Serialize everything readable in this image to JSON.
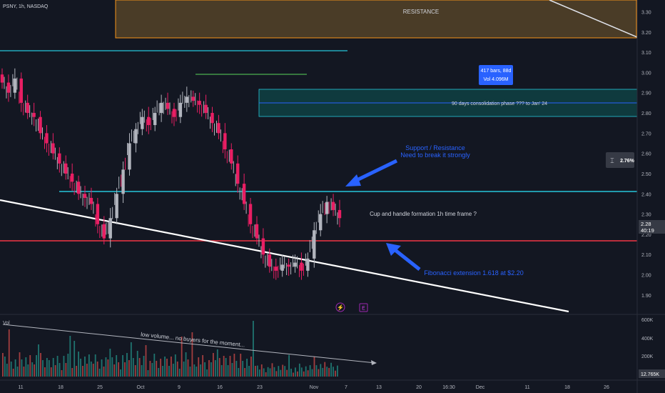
{
  "header": {
    "symbol": "PSNY, 1h, NASDAQ"
  },
  "chart_data": {
    "type": "candlestick",
    "ylim": [
      1.85,
      3.33
    ],
    "y_ticks": [
      "3.30",
      "3.20",
      "3.10",
      "3.00",
      "2.90",
      "2.80",
      "2.70",
      "2.60",
      "2.50",
      "2.40",
      "2.30",
      "2.20",
      "2.10",
      "2.00",
      "1.90"
    ],
    "x_ticks": [
      "11",
      "18",
      "25",
      "Oct",
      "9",
      "16",
      "23",
      "Nov",
      "7",
      "13",
      "20",
      "16:30",
      "Dec",
      "11",
      "18",
      "26"
    ],
    "price_badge": {
      "price": "2.28",
      "countdown": "40:19"
    },
    "volume_pane": {
      "label": "Vol",
      "y_ticks": [
        "600K",
        "400K",
        "200K"
      ],
      "last_value": "12.765K"
    },
    "annotations": {
      "resistance_label": "RESISTANCE",
      "consolidation_label": "90 days consolidation phase ??? to Jan' 24",
      "measure_bars": "417 bars, 88d",
      "measure_vol": "Vol 4.096M",
      "support_line1": "Support / Resistance",
      "support_line2": "Need to break it strongly",
      "cup_handle": "Cup and handle formation 1h time frame ?",
      "fibonacci": "Fibonacci extension 1.618 at $2.20",
      "low_volume": "low volume... no buyers for the moment...",
      "percent_badge": "2.76%",
      "event_dividend": "⚡",
      "event_earnings": "E"
    },
    "series": [
      {
        "type": "candles",
        "x_index_start": 0,
        "close": [
          2.95,
          2.9,
          2.97,
          2.85,
          2.8,
          2.78,
          2.7,
          2.65,
          2.6,
          2.55,
          2.5,
          2.46,
          2.4,
          2.38,
          2.35,
          2.25,
          2.18,
          2.28,
          2.4,
          2.52,
          2.65,
          2.72,
          2.78,
          2.74,
          2.8,
          2.85,
          2.82,
          2.78,
          2.85,
          2.88,
          2.86,
          2.84,
          2.8,
          2.75,
          2.7,
          2.62,
          2.55,
          2.45,
          2.35,
          2.25,
          2.18,
          2.1,
          2.04,
          2.02,
          2.05,
          2.04,
          2.06,
          2.02,
          2.08,
          2.22,
          2.3,
          2.36,
          2.32,
          2.28
        ]
      }
    ]
  },
  "colors": {
    "background": "#131722",
    "up": "#b2b5be",
    "down": "#e91e63",
    "resistance_fill": "#5d4a2a",
    "resistance_border": "#f7931a",
    "cyan": "#26c6da",
    "red_line": "#f23645",
    "blue": "#2962ff",
    "green_line": "#4caf50",
    "volume_up": "#26a69a",
    "volume_down": "#ef5350"
  }
}
